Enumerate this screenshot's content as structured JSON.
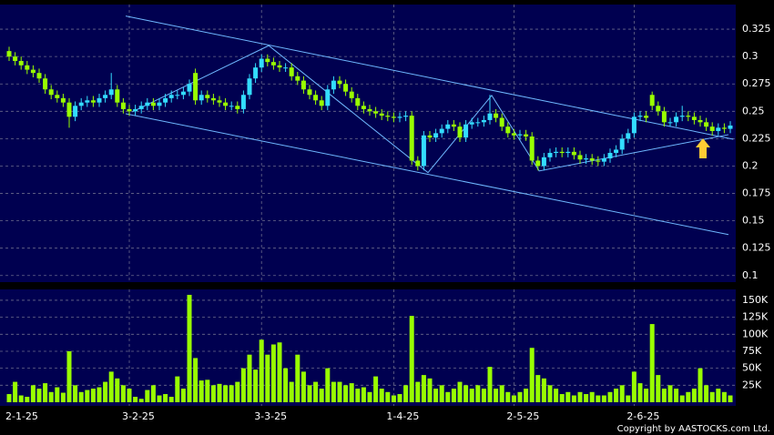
{
  "chart_data": [
    {
      "type": "candlestick",
      "categories": [
        "2-1-25",
        null,
        null,
        null,
        null,
        null,
        null,
        null,
        null,
        null,
        null,
        null,
        null,
        null,
        null,
        null,
        null,
        null,
        null,
        null,
        "3-2-25",
        null,
        null,
        null,
        null,
        null,
        null,
        null,
        null,
        null,
        null,
        null,
        null,
        null,
        null,
        null,
        null,
        null,
        null,
        null,
        null,
        null,
        "3-3-25",
        null,
        null,
        null,
        null,
        null,
        null,
        null,
        null,
        null,
        null,
        null,
        null,
        null,
        null,
        null,
        null,
        null,
        null,
        null,
        null,
        null,
        "1-4-25",
        null,
        null,
        null,
        null,
        null,
        null,
        null,
        null,
        null,
        null,
        null,
        null,
        null,
        null,
        null,
        null,
        null,
        null,
        null,
        "2-5-25",
        null,
        null,
        null,
        null,
        null,
        null,
        null,
        null,
        null,
        null,
        null,
        null,
        null,
        null,
        null,
        null,
        null,
        null,
        null,
        "2-6-25",
        null,
        null,
        null,
        null,
        null,
        null,
        null,
        null,
        null,
        null,
        null,
        null,
        null,
        null,
        null,
        null
      ],
      "open": [
        0.305,
        0.3,
        0.296,
        0.292,
        0.288,
        0.285,
        0.28,
        0.27,
        0.265,
        0.262,
        0.258,
        0.245,
        0.255,
        0.258,
        0.26,
        0.258,
        0.262,
        0.265,
        0.27,
        0.258,
        0.252,
        0.25,
        0.252,
        0.255,
        0.258,
        0.255,
        0.258,
        0.262,
        0.265,
        0.265,
        0.268,
        0.285,
        0.26,
        0.265,
        0.262,
        0.26,
        0.258,
        0.255,
        0.255,
        0.252,
        0.265,
        0.28,
        0.29,
        0.298,
        0.295,
        0.292,
        0.29,
        0.29,
        0.282,
        0.278,
        0.27,
        0.265,
        0.26,
        0.255,
        0.27,
        0.278,
        0.275,
        0.268,
        0.262,
        0.255,
        0.252,
        0.25,
        0.248,
        0.246,
        0.245,
        0.244,
        0.245,
        0.246,
        0.205,
        0.2,
        0.228,
        0.226,
        0.23,
        0.234,
        0.238,
        0.236,
        0.226,
        0.238,
        0.24,
        0.24,
        0.242,
        0.248,
        0.244,
        0.236,
        0.23,
        0.228,
        0.229,
        0.227,
        0.205,
        0.2,
        0.208,
        0.212,
        0.213,
        0.212,
        0.213,
        0.21,
        0.206,
        0.207,
        0.205,
        0.204,
        0.207,
        0.212,
        0.215,
        0.225,
        0.23,
        0.245,
        0.246,
        0.265,
        0.255,
        0.25,
        0.24,
        0.24,
        0.245,
        0.246,
        0.245,
        0.242,
        0.24,
        0.236,
        0.232,
        0.235,
        0.234
      ],
      "high": [
        0.309,
        0.304,
        0.3,
        0.296,
        0.292,
        0.289,
        0.284,
        0.274,
        0.269,
        0.266,
        0.262,
        0.259,
        0.262,
        0.264,
        0.264,
        0.266,
        0.269,
        0.285,
        0.274,
        0.262,
        0.256,
        0.256,
        0.259,
        0.262,
        0.262,
        0.262,
        0.266,
        0.269,
        0.269,
        0.272,
        0.279,
        0.289,
        0.269,
        0.269,
        0.266,
        0.264,
        0.262,
        0.259,
        0.259,
        0.269,
        0.284,
        0.294,
        0.302,
        0.302,
        0.299,
        0.296,
        0.294,
        0.294,
        0.286,
        0.282,
        0.274,
        0.269,
        0.264,
        0.274,
        0.282,
        0.282,
        0.279,
        0.272,
        0.266,
        0.259,
        0.256,
        0.254,
        0.252,
        0.25,
        0.249,
        0.249,
        0.25,
        0.25,
        0.209,
        0.232,
        0.232,
        0.234,
        0.238,
        0.242,
        0.242,
        0.24,
        0.242,
        0.244,
        0.244,
        0.246,
        0.265,
        0.252,
        0.248,
        0.24,
        0.234,
        0.233,
        0.233,
        0.231,
        0.209,
        0.212,
        0.216,
        0.217,
        0.217,
        0.217,
        0.217,
        0.214,
        0.211,
        0.211,
        0.209,
        0.211,
        0.216,
        0.219,
        0.229,
        0.234,
        0.249,
        0.25,
        0.25,
        0.268,
        0.259,
        0.254,
        0.244,
        0.249,
        0.255,
        0.25,
        0.249,
        0.246,
        0.244,
        0.24,
        0.239,
        0.239,
        0.241
      ],
      "low": [
        0.296,
        0.292,
        0.288,
        0.284,
        0.281,
        0.276,
        0.266,
        0.261,
        0.258,
        0.254,
        0.235,
        0.241,
        0.251,
        0.254,
        0.254,
        0.254,
        0.258,
        0.261,
        0.254,
        0.248,
        0.246,
        0.246,
        0.248,
        0.251,
        0.251,
        0.251,
        0.254,
        0.258,
        0.261,
        0.261,
        0.264,
        0.256,
        0.256,
        0.258,
        0.256,
        0.254,
        0.251,
        0.251,
        0.248,
        0.248,
        0.261,
        0.276,
        0.286,
        0.291,
        0.288,
        0.286,
        0.286,
        0.278,
        0.274,
        0.266,
        0.261,
        0.256,
        0.251,
        0.251,
        0.266,
        0.271,
        0.264,
        0.258,
        0.251,
        0.248,
        0.246,
        0.244,
        0.242,
        0.241,
        0.24,
        0.24,
        0.241,
        0.201,
        0.196,
        0.196,
        0.222,
        0.222,
        0.226,
        0.23,
        0.232,
        0.222,
        0.222,
        0.234,
        0.236,
        0.236,
        0.238,
        0.24,
        0.232,
        0.226,
        0.224,
        0.224,
        0.223,
        0.201,
        0.196,
        0.196,
        0.204,
        0.208,
        0.208,
        0.208,
        0.206,
        0.202,
        0.202,
        0.201,
        0.2,
        0.2,
        0.203,
        0.208,
        0.211,
        0.221,
        0.226,
        0.241,
        0.24,
        0.251,
        0.246,
        0.236,
        0.236,
        0.236,
        0.241,
        0.241,
        0.238,
        0.236,
        0.232,
        0.228,
        0.228,
        0.23,
        0.23
      ],
      "close": [
        0.3,
        0.296,
        0.292,
        0.288,
        0.285,
        0.28,
        0.27,
        0.265,
        0.262,
        0.258,
        0.245,
        0.255,
        0.258,
        0.26,
        0.258,
        0.262,
        0.265,
        0.27,
        0.258,
        0.252,
        0.25,
        0.252,
        0.255,
        0.258,
        0.255,
        0.258,
        0.262,
        0.265,
        0.265,
        0.268,
        0.275,
        0.26,
        0.265,
        0.262,
        0.26,
        0.258,
        0.255,
        0.255,
        0.252,
        0.265,
        0.28,
        0.29,
        0.298,
        0.295,
        0.292,
        0.29,
        0.29,
        0.282,
        0.278,
        0.27,
        0.265,
        0.26,
        0.255,
        0.27,
        0.278,
        0.275,
        0.268,
        0.262,
        0.255,
        0.252,
        0.25,
        0.248,
        0.246,
        0.245,
        0.244,
        0.245,
        0.246,
        0.205,
        0.2,
        0.228,
        0.226,
        0.23,
        0.234,
        0.238,
        0.236,
        0.226,
        0.238,
        0.24,
        0.24,
        0.242,
        0.248,
        0.244,
        0.236,
        0.23,
        0.228,
        0.229,
        0.227,
        0.205,
        0.2,
        0.208,
        0.212,
        0.213,
        0.212,
        0.213,
        0.21,
        0.206,
        0.207,
        0.205,
        0.204,
        0.207,
        0.212,
        0.215,
        0.225,
        0.23,
        0.245,
        0.246,
        0.244,
        0.255,
        0.25,
        0.24,
        0.24,
        0.245,
        0.246,
        0.245,
        0.242,
        0.24,
        0.236,
        0.232,
        0.235,
        0.234,
        0.237
      ],
      "up_color": "#33ddff",
      "down_color": "#99ff00",
      "ylim": [
        0.094,
        0.3475
      ],
      "yticks": [
        0.1,
        0.125,
        0.15,
        0.175,
        0.2,
        0.225,
        0.25,
        0.275,
        0.3,
        0.325
      ],
      "grid": true,
      "trendline_color": "#6fb8ff",
      "trendlines": [
        {
          "x": [
            19.4,
            120.5
          ],
          "y": [
            0.337,
            0.2245
          ]
        },
        {
          "x": [
            19.4,
            119.7
          ],
          "y": [
            0.2478,
            0.1374
          ]
        },
        {
          "x": [
            20.5,
            43.2,
            69.7,
            80.3,
            88.2,
            119.7
          ],
          "y": [
            0.2495,
            0.31,
            0.194,
            0.2645,
            0.1955,
            0.2287
          ]
        }
      ]
    },
    {
      "type": "bar",
      "values": [
        12000,
        30000,
        10000,
        8000,
        25000,
        20000,
        28000,
        15000,
        22000,
        14000,
        75000,
        25000,
        15000,
        18000,
        20000,
        22000,
        30000,
        45000,
        35000,
        25000,
        20000,
        8000,
        5000,
        18000,
        25000,
        10000,
        12000,
        8000,
        38000,
        20000,
        158000,
        65000,
        32000,
        33000,
        25000,
        27000,
        25000,
        25000,
        30000,
        50000,
        70000,
        48000,
        92000,
        70000,
        85000,
        88000,
        50000,
        30000,
        70000,
        45000,
        25000,
        30000,
        20000,
        50000,
        30000,
        30000,
        25000,
        28000,
        20000,
        22000,
        15000,
        38000,
        20000,
        15000,
        10000,
        12000,
        25000,
        127000,
        30000,
        40000,
        35000,
        20000,
        25000,
        15000,
        20000,
        30000,
        25000,
        20000,
        25000,
        20000,
        52000,
        20000,
        25000,
        15000,
        10000,
        15000,
        20000,
        80000,
        40000,
        35000,
        25000,
        20000,
        12000,
        15000,
        10000,
        15000,
        12000,
        15000,
        10000,
        10000,
        15000,
        20000,
        25000,
        10000,
        45000,
        28000,
        20000,
        115000,
        40000,
        20000,
        25000,
        20000,
        10000,
        15000,
        20000,
        50000,
        25000,
        15000,
        20000,
        15000,
        10000
      ],
      "color": "#99ff00",
      "ylim": [
        0,
        166000
      ],
      "yticks": [
        {
          "value": 25000,
          "label": "25K"
        },
        {
          "value": 50000,
          "label": "50K"
        },
        {
          "value": 75000,
          "label": "75K"
        },
        {
          "value": 100000,
          "label": "100K"
        },
        {
          "value": 125000,
          "label": "125K"
        },
        {
          "value": 150000,
          "label": "150K"
        }
      ],
      "grid": true
    }
  ],
  "copyright": "Copyright by AASTOCKS.com Ltd."
}
